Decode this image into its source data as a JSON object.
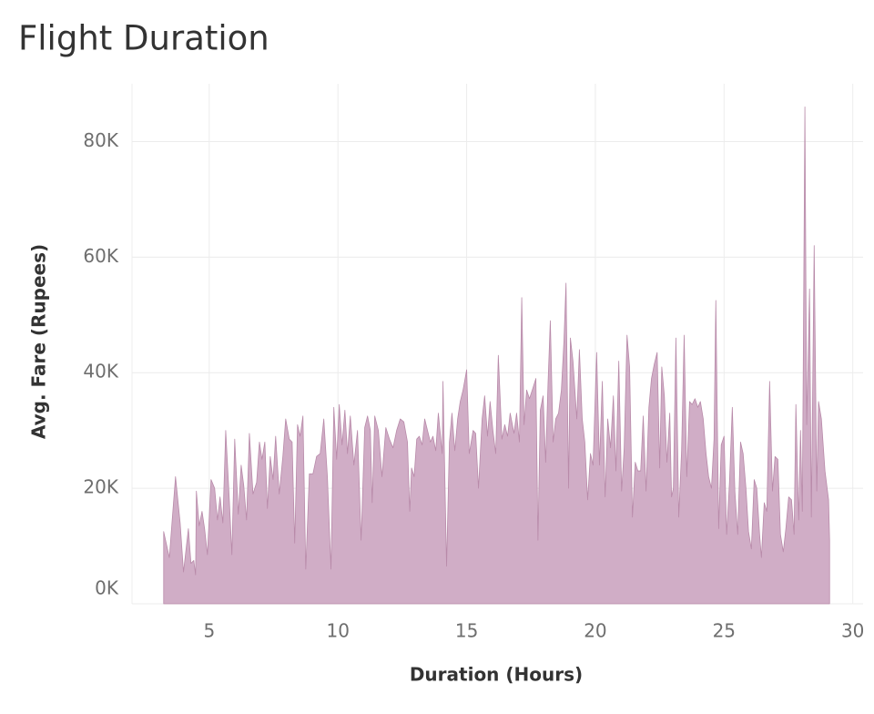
{
  "chart_data": {
    "type": "area",
    "title": "Flight Duration",
    "xlabel": "Duration (Hours)",
    "ylabel": "Avg. Fare (Rupees)",
    "color": "#d0adc6",
    "line_color": "#b88aa9",
    "grid": true,
    "xlim": [
      2,
      30.4
    ],
    "xticks": [
      5,
      10,
      15,
      20,
      25,
      30
    ],
    "ylim": [
      0,
      90000
    ],
    "yticks": [
      {
        "value": 0,
        "label": "0K"
      },
      {
        "value": 20000,
        "label": "20K"
      },
      {
        "value": 40000,
        "label": "40K"
      },
      {
        "value": 60000,
        "label": "60K"
      },
      {
        "value": 80000,
        "label": "80K"
      }
    ],
    "x": [
      3.23,
      3.45,
      3.69,
      3.87,
      4.0,
      4.19,
      4.29,
      4.4,
      4.47,
      4.5,
      4.61,
      4.72,
      4.82,
      4.93,
      5.07,
      5.21,
      5.32,
      5.42,
      5.53,
      5.64,
      5.78,
      5.88,
      5.99,
      6.13,
      6.24,
      6.34,
      6.45,
      6.56,
      6.7,
      6.84,
      6.95,
      7.05,
      7.16,
      7.26,
      7.37,
      7.48,
      7.58,
      7.72,
      7.86,
      7.97,
      8.11,
      8.22,
      8.32,
      8.43,
      8.53,
      8.64,
      8.75,
      8.89,
      9.03,
      9.17,
      9.31,
      9.45,
      9.59,
      9.73,
      9.84,
      9.95,
      10.05,
      10.16,
      10.27,
      10.37,
      10.48,
      10.62,
      10.76,
      10.9,
      11.04,
      11.15,
      11.26,
      11.33,
      11.43,
      11.57,
      11.71,
      11.86,
      12.0,
      12.14,
      12.28,
      12.42,
      12.56,
      12.7,
      12.79,
      12.86,
      12.96,
      13.06,
      13.16,
      13.27,
      13.37,
      13.48,
      13.59,
      13.69,
      13.8,
      13.9,
      14.05,
      14.08,
      14.22,
      14.33,
      14.43,
      14.54,
      14.65,
      14.75,
      14.86,
      15.0,
      15.1,
      15.25,
      15.35,
      15.46,
      15.6,
      15.7,
      15.81,
      15.91,
      16.02,
      16.13,
      16.23,
      16.37,
      16.48,
      16.59,
      16.69,
      16.84,
      16.94,
      17.05,
      17.14,
      17.23,
      17.33,
      17.44,
      17.55,
      17.69,
      17.77,
      17.86,
      17.97,
      18.07,
      18.16,
      18.25,
      18.36,
      18.46,
      18.57,
      18.68,
      18.78,
      18.86,
      18.96,
      19.03,
      19.13,
      19.28,
      19.38,
      19.49,
      19.59,
      19.7,
      19.81,
      19.91,
      20.05,
      20.16,
      20.27,
      20.38,
      20.48,
      20.59,
      20.7,
      20.8,
      20.91,
      21.02,
      21.12,
      21.23,
      21.33,
      21.44,
      21.55,
      21.65,
      21.76,
      21.86,
      21.97,
      22.08,
      22.18,
      22.29,
      22.4,
      22.5,
      22.58,
      22.68,
      22.78,
      22.89,
      22.96,
      23.03,
      23.13,
      23.24,
      23.35,
      23.45,
      23.55,
      23.66,
      23.76,
      23.87,
      23.98,
      24.08,
      24.19,
      24.3,
      24.4,
      24.51,
      24.61,
      24.68,
      24.79,
      24.89,
      25.0,
      25.1,
      25.21,
      25.32,
      25.42,
      25.53,
      25.64,
      25.74,
      25.85,
      25.95,
      26.06,
      26.17,
      26.27,
      26.38,
      26.45,
      26.56,
      26.66,
      26.77,
      26.88,
      26.98,
      27.09,
      27.19,
      27.3,
      27.4,
      27.51,
      27.62,
      27.72,
      27.79,
      27.9,
      27.97,
      28.04,
      28.14,
      28.21,
      28.32,
      28.39,
      28.5,
      28.6,
      28.67,
      28.78,
      28.92,
      29.06,
      29.1
    ],
    "values": [
      12500,
      8000,
      22000,
      14000,
      5500,
      13000,
      7000,
      7500,
      5000,
      19500,
      13500,
      16000,
      13000,
      8500,
      21500,
      20000,
      14500,
      18500,
      14000,
      30000,
      18000,
      8500,
      28500,
      15500,
      24000,
      20500,
      14500,
      29500,
      19000,
      21000,
      28000,
      25000,
      28000,
      16500,
      25500,
      21500,
      29000,
      19000,
      25500,
      32000,
      28500,
      28000,
      10500,
      31000,
      29000,
      32500,
      6000,
      22500,
      22500,
      25500,
      26000,
      32000,
      22000,
      6000,
      34000,
      25000,
      34500,
      27500,
      33500,
      26000,
      32500,
      24000,
      30000,
      11000,
      30500,
      32500,
      30000,
      17500,
      32500,
      30000,
      22000,
      30500,
      28500,
      27000,
      30000,
      32000,
      31500,
      28000,
      16000,
      23500,
      22000,
      28500,
      29000,
      27500,
      32000,
      30000,
      28000,
      29000,
      26500,
      33000,
      26000,
      38500,
      6500,
      28000,
      33000,
      26500,
      32000,
      35000,
      37000,
      40500,
      26000,
      30000,
      29500,
      20000,
      32000,
      36000,
      29000,
      35000,
      30000,
      26000,
      43000,
      28500,
      31000,
      29000,
      33000,
      29500,
      33000,
      28000,
      53000,
      31000,
      37000,
      35500,
      37000,
      39000,
      11000,
      33500,
      36000,
      24500,
      38000,
      49000,
      28000,
      32000,
      33000,
      37000,
      45500,
      55500,
      20000,
      46000,
      42000,
      32000,
      44000,
      32000,
      28000,
      18000,
      26000,
      24000,
      43500,
      24000,
      38500,
      18500,
      32000,
      27000,
      36000,
      23000,
      42000,
      19500,
      27000,
      46500,
      41000,
      15000,
      24500,
      23000,
      23000,
      32500,
      19500,
      34000,
      39000,
      41500,
      43500,
      23500,
      41000,
      36000,
      24500,
      33000,
      18500,
      20000,
      46000,
      15000,
      26500,
      46500,
      22000,
      35000,
      34500,
      35500,
      34000,
      35000,
      32000,
      26000,
      22000,
      20000,
      28500,
      52500,
      13000,
      27500,
      29000,
      12000,
      21000,
      34000,
      19500,
      12000,
      28000,
      26000,
      20000,
      12500,
      9500,
      21500,
      20000,
      12000,
      8000,
      17500,
      16000,
      38500,
      19500,
      25500,
      25000,
      12000,
      9000,
      13000,
      18500,
      18000,
      12000,
      34500,
      14500,
      30000,
      16000,
      86000,
      31000,
      54500,
      15000,
      62000,
      19500,
      35000,
      32000,
      23000,
      18000,
      11000
    ]
  }
}
